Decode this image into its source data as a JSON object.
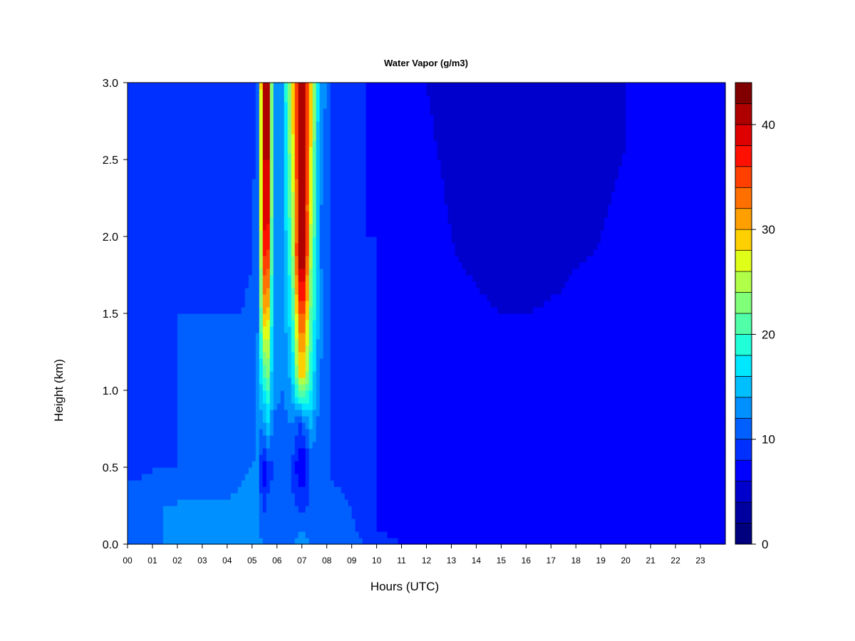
{
  "chart_data": {
    "type": "heatmap",
    "title": "Water Vapor (g/m3)",
    "xlabel": "Hours (UTC)",
    "ylabel": "Height (km)",
    "xlim": [
      0,
      24
    ],
    "ylim": [
      0,
      3
    ],
    "x_ticks": [
      "00",
      "01",
      "02",
      "03",
      "04",
      "05",
      "06",
      "07",
      "08",
      "09",
      "10",
      "11",
      "12",
      "13",
      "14",
      "15",
      "16",
      "17",
      "18",
      "19",
      "20",
      "21",
      "22",
      "23"
    ],
    "y_ticks": [
      "0.0",
      "0.5",
      "1.0",
      "1.5",
      "2.0",
      "2.5",
      "3.0"
    ],
    "colorbar": {
      "range": [
        0,
        44
      ],
      "tick_labels": [
        "0",
        "10",
        "20",
        "30",
        "40"
      ],
      "level_colors": [
        "#00007F",
        "#00009E",
        "#0000CD",
        "#0000FF",
        "#0030FF",
        "#0060FF",
        "#0090FF",
        "#00BFFF",
        "#00E8FF",
        "#20FFD8",
        "#50FFA8",
        "#80FF78",
        "#B0FF48",
        "#E0FF18",
        "#FFD000",
        "#FFA000",
        "#FF7000",
        "#FF4000",
        "#FF1000",
        "#DF0000",
        "#AF0000",
        "#800000"
      ]
    },
    "columns": [
      {
        "x": 0.0,
        "profile": [
          [
            0.0,
            11
          ],
          [
            0.15,
            12
          ],
          [
            0.4,
            10
          ],
          [
            1.5,
            9
          ],
          [
            2.4,
            9
          ],
          [
            3.0,
            8
          ]
        ]
      },
      {
        "x": 0.5,
        "profile": [
          [
            0.0,
            11
          ],
          [
            0.2,
            12
          ],
          [
            0.4,
            10
          ],
          [
            1.5,
            9
          ],
          [
            2.4,
            9
          ],
          [
            3.0,
            8
          ]
        ]
      },
      {
        "x": 1.0,
        "profile": [
          [
            0.0,
            11
          ],
          [
            0.2,
            12
          ],
          [
            0.45,
            10
          ],
          [
            1.5,
            9
          ],
          [
            2.4,
            9
          ],
          [
            3.0,
            8
          ]
        ]
      },
      {
        "x": 1.5,
        "profile": [
          [
            0.0,
            12
          ],
          [
            0.25,
            12
          ],
          [
            0.5,
            10
          ],
          [
            1.5,
            9
          ],
          [
            2.4,
            9
          ],
          [
            3.0,
            8
          ]
        ]
      },
      {
        "x": 2.0,
        "profile": [
          [
            0.0,
            12
          ],
          [
            0.3,
            12
          ],
          [
            0.5,
            10
          ],
          [
            1.5,
            10
          ],
          [
            2.4,
            9
          ],
          [
            3.0,
            8
          ]
        ]
      },
      {
        "x": 3.0,
        "profile": [
          [
            0.0,
            12
          ],
          [
            0.3,
            12
          ],
          [
            0.6,
            10
          ],
          [
            1.5,
            10
          ],
          [
            2.5,
            9
          ],
          [
            3.0,
            8
          ]
        ]
      },
      {
        "x": 4.0,
        "profile": [
          [
            0.0,
            12
          ],
          [
            0.3,
            12
          ],
          [
            0.7,
            10
          ],
          [
            1.5,
            10
          ],
          [
            2.6,
            9
          ],
          [
            3.0,
            8
          ]
        ]
      },
      {
        "x": 4.6,
        "profile": [
          [
            0.0,
            13
          ],
          [
            0.4,
            12
          ],
          [
            0.9,
            11
          ],
          [
            1.5,
            10
          ],
          [
            2.5,
            9
          ],
          [
            3.0,
            8
          ]
        ]
      },
      {
        "x": 5.0,
        "profile": [
          [
            0.0,
            13
          ],
          [
            0.5,
            12
          ],
          [
            1.0,
            11
          ],
          [
            1.8,
            10
          ],
          [
            2.5,
            9
          ],
          [
            3.0,
            8
          ]
        ]
      },
      {
        "x": 5.25,
        "profile": [
          [
            0.0,
            13
          ],
          [
            0.4,
            12
          ],
          [
            1.0,
            13
          ],
          [
            1.5,
            12
          ],
          [
            2.0,
            12
          ],
          [
            3.0,
            12
          ]
        ]
      },
      {
        "x": 5.45,
        "profile": [
          [
            0.0,
            12
          ],
          [
            0.5,
            6
          ],
          [
            0.8,
            13
          ],
          [
            1.1,
            20
          ],
          [
            1.5,
            30
          ],
          [
            2.0,
            38
          ],
          [
            3.0,
            42
          ]
        ]
      },
      {
        "x": 5.65,
        "profile": [
          [
            0.0,
            12
          ],
          [
            0.5,
            9
          ],
          [
            0.8,
            16
          ],
          [
            1.2,
            24
          ],
          [
            1.8,
            34
          ],
          [
            2.2,
            40
          ],
          [
            3.0,
            40
          ]
        ]
      },
      {
        "x": 5.85,
        "profile": [
          [
            0.0,
            11
          ],
          [
            0.5,
            10
          ],
          [
            1.0,
            13
          ],
          [
            2.0,
            14
          ],
          [
            3.0,
            14
          ]
        ]
      },
      {
        "x": 6.2,
        "profile": [
          [
            0.0,
            11
          ],
          [
            0.5,
            10
          ],
          [
            1.0,
            12
          ],
          [
            2.0,
            12
          ],
          [
            3.0,
            12
          ]
        ]
      },
      {
        "x": 6.6,
        "profile": [
          [
            0.0,
            11
          ],
          [
            0.5,
            10
          ],
          [
            1.0,
            14
          ],
          [
            1.5,
            18
          ],
          [
            2.0,
            22
          ],
          [
            3.0,
            28
          ]
        ]
      },
      {
        "x": 6.9,
        "profile": [
          [
            0.0,
            13
          ],
          [
            0.5,
            6
          ],
          [
            0.8,
            10
          ],
          [
            1.1,
            28
          ],
          [
            1.5,
            34
          ],
          [
            1.9,
            42
          ],
          [
            2.2,
            40
          ],
          [
            3.0,
            40
          ]
        ]
      },
      {
        "x": 7.1,
        "profile": [
          [
            0.0,
            13
          ],
          [
            0.5,
            6
          ],
          [
            0.8,
            12
          ],
          [
            1.1,
            28
          ],
          [
            1.5,
            34
          ],
          [
            1.9,
            42
          ],
          [
            2.2,
            40
          ],
          [
            3.0,
            40
          ]
        ]
      },
      {
        "x": 7.35,
        "profile": [
          [
            0.0,
            12
          ],
          [
            0.5,
            10
          ],
          [
            1.0,
            18
          ],
          [
            1.5,
            22
          ],
          [
            2.0,
            26
          ],
          [
            3.0,
            30
          ]
        ]
      },
      {
        "x": 7.7,
        "profile": [
          [
            0.0,
            11
          ],
          [
            0.5,
            10
          ],
          [
            1.0,
            12
          ],
          [
            1.5,
            13
          ],
          [
            2.0,
            12
          ],
          [
            3.0,
            14
          ]
        ]
      },
      {
        "x": 8.2,
        "profile": [
          [
            0.0,
            11
          ],
          [
            0.4,
            10
          ],
          [
            1.0,
            10
          ],
          [
            2.0,
            10
          ],
          [
            3.0,
            10
          ]
        ]
      },
      {
        "x": 8.8,
        "profile": [
          [
            0.0,
            11
          ],
          [
            0.3,
            10
          ],
          [
            1.0,
            9
          ],
          [
            2.0,
            9
          ],
          [
            3.0,
            9
          ]
        ]
      },
      {
        "x": 9.5,
        "profile": [
          [
            0.0,
            10
          ],
          [
            0.2,
            9
          ],
          [
            1.0,
            9
          ],
          [
            2.0,
            8
          ],
          [
            3.0,
            8
          ]
        ]
      },
      {
        "x": 10.0,
        "profile": [
          [
            0.0,
            9
          ],
          [
            0.1,
            8
          ],
          [
            1.0,
            8
          ],
          [
            2.0,
            8
          ],
          [
            3.0,
            7
          ]
        ]
      },
      {
        "x": 11.0,
        "profile": [
          [
            0.0,
            8
          ],
          [
            0.1,
            7
          ],
          [
            1.0,
            7
          ],
          [
            2.0,
            7
          ],
          [
            3.0,
            6
          ]
        ]
      },
      {
        "x": 12.0,
        "profile": [
          [
            0.0,
            8
          ],
          [
            0.05,
            7
          ],
          [
            1.0,
            7
          ],
          [
            2.0,
            7
          ],
          [
            3.0,
            6
          ]
        ]
      },
      {
        "x": 13.0,
        "profile": [
          [
            0.0,
            7
          ],
          [
            1.0,
            7
          ],
          [
            2.0,
            6
          ],
          [
            3.0,
            5
          ]
        ]
      },
      {
        "x": 14.0,
        "profile": [
          [
            0.0,
            7
          ],
          [
            1.0,
            7
          ],
          [
            1.7,
            6
          ],
          [
            2.2,
            5
          ],
          [
            3.0,
            5
          ]
        ]
      },
      {
        "x": 15.0,
        "profile": [
          [
            0.0,
            7
          ],
          [
            1.0,
            7
          ],
          [
            1.5,
            6
          ],
          [
            2.0,
            5
          ],
          [
            2.6,
            4
          ],
          [
            3.0,
            4
          ]
        ]
      },
      {
        "x": 16.0,
        "profile": [
          [
            0.0,
            7
          ],
          [
            1.0,
            7
          ],
          [
            1.5,
            6
          ],
          [
            2.0,
            5
          ],
          [
            2.4,
            4
          ],
          [
            3.0,
            4
          ]
        ]
      },
      {
        "x": 17.0,
        "profile": [
          [
            0.0,
            7
          ],
          [
            1.0,
            7
          ],
          [
            1.6,
            6
          ],
          [
            2.0,
            5
          ],
          [
            2.4,
            4
          ],
          [
            3.0,
            4
          ]
        ]
      },
      {
        "x": 18.0,
        "profile": [
          [
            0.0,
            7
          ],
          [
            1.0,
            7
          ],
          [
            1.8,
            6
          ],
          [
            2.2,
            5
          ],
          [
            2.8,
            4
          ],
          [
            3.0,
            4
          ]
        ]
      },
      {
        "x": 19.0,
        "profile": [
          [
            0.0,
            7
          ],
          [
            1.0,
            7
          ],
          [
            2.0,
            6
          ],
          [
            2.5,
            5
          ],
          [
            3.0,
            5
          ]
        ]
      },
      {
        "x": 20.0,
        "profile": [
          [
            0.0,
            7
          ],
          [
            1.0,
            7
          ],
          [
            2.0,
            7
          ],
          [
            2.6,
            6
          ],
          [
            3.0,
            6
          ]
        ]
      },
      {
        "x": 21.0,
        "profile": [
          [
            0.0,
            7
          ],
          [
            1.0,
            7
          ],
          [
            2.0,
            7
          ],
          [
            3.0,
            6
          ]
        ]
      },
      {
        "x": 22.0,
        "profile": [
          [
            0.0,
            7
          ],
          [
            1.0,
            7
          ],
          [
            2.0,
            7
          ],
          [
            3.0,
            7
          ]
        ]
      },
      {
        "x": 23.0,
        "profile": [
          [
            0.0,
            7
          ],
          [
            1.0,
            7
          ],
          [
            2.0,
            8
          ],
          [
            3.0,
            7
          ]
        ]
      },
      {
        "x": 23.8,
        "profile": [
          [
            0.0,
            7
          ],
          [
            1.0,
            7
          ],
          [
            2.0,
            8
          ],
          [
            3.0,
            7
          ]
        ]
      }
    ]
  }
}
